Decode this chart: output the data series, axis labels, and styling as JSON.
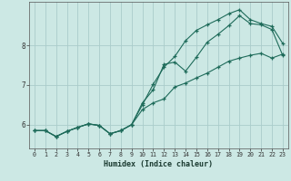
{
  "xlabel": "Humidex (Indice chaleur)",
  "bg_color": "#cce8e4",
  "grid_color": "#aaccca",
  "line_color": "#1e6b5a",
  "xlim": [
    -0.5,
    23.5
  ],
  "ylim": [
    5.4,
    9.1
  ],
  "yticks": [
    6,
    7,
    8
  ],
  "xticks": [
    0,
    1,
    2,
    3,
    4,
    5,
    6,
    7,
    8,
    9,
    10,
    11,
    12,
    13,
    14,
    15,
    16,
    17,
    18,
    19,
    20,
    21,
    22,
    23
  ],
  "line1_x": [
    0,
    1,
    2,
    3,
    4,
    5,
    6,
    7,
    8,
    9,
    10,
    11,
    12,
    13,
    14,
    15,
    16,
    17,
    18,
    19,
    20,
    21,
    22,
    23
  ],
  "line1_y": [
    5.85,
    5.85,
    5.7,
    5.83,
    5.93,
    6.02,
    5.98,
    5.77,
    5.85,
    6.0,
    6.38,
    6.55,
    6.65,
    6.95,
    7.05,
    7.18,
    7.3,
    7.45,
    7.6,
    7.68,
    7.75,
    7.8,
    7.68,
    7.78
  ],
  "line2_x": [
    0,
    1,
    2,
    3,
    4,
    5,
    6,
    7,
    8,
    9,
    10,
    11,
    12,
    13,
    14,
    15,
    16,
    17,
    18,
    19,
    20,
    21,
    22,
    23
  ],
  "line2_y": [
    5.85,
    5.85,
    5.7,
    5.83,
    5.93,
    6.02,
    5.98,
    5.77,
    5.85,
    6.0,
    6.55,
    6.88,
    7.52,
    7.58,
    7.35,
    7.7,
    8.08,
    8.28,
    8.5,
    8.75,
    8.55,
    8.52,
    8.4,
    7.75
  ],
  "line3_x": [
    0,
    1,
    2,
    3,
    4,
    5,
    6,
    7,
    8,
    9,
    10,
    11,
    12,
    13,
    14,
    15,
    16,
    17,
    18,
    19,
    20,
    21,
    22,
    23
  ],
  "line3_y": [
    5.85,
    5.85,
    5.7,
    5.83,
    5.93,
    6.02,
    5.98,
    5.77,
    5.85,
    6.0,
    6.5,
    7.02,
    7.45,
    7.72,
    8.12,
    8.38,
    8.52,
    8.65,
    8.8,
    8.9,
    8.65,
    8.55,
    8.48,
    8.05
  ]
}
